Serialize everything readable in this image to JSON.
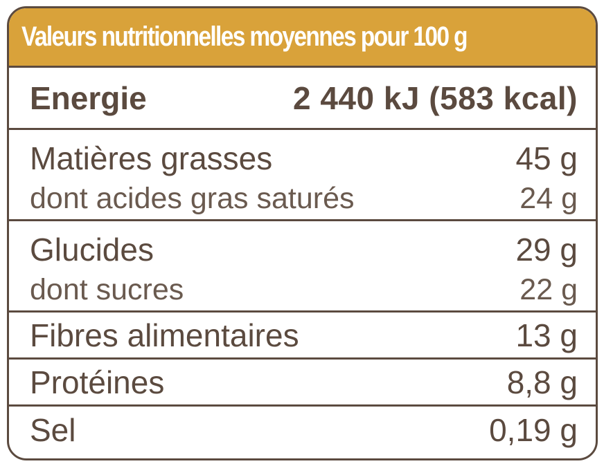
{
  "header": {
    "title": "Valeurs nutritionnelles moyennes pour 100 g"
  },
  "energy": {
    "label": "Energie",
    "value": "2 440 kJ (583 kcal)"
  },
  "fat": {
    "label": "Matières grasses",
    "value": "45 g",
    "sub_label": "dont acides gras saturés",
    "sub_value": "24 g"
  },
  "carbs": {
    "label": "Glucides",
    "value": "29 g",
    "sub_label": "dont sucres",
    "sub_value": "22 g"
  },
  "fibre": {
    "label": "Fibres alimentaires",
    "value": "13 g"
  },
  "protein": {
    "label": "Protéines",
    "value": "8,8 g"
  },
  "salt": {
    "label": "Sel",
    "value": "0,19 g"
  },
  "colors": {
    "header_bg": "#d9a23a",
    "border": "#5b4a3f",
    "text": "#5b4a3f"
  }
}
